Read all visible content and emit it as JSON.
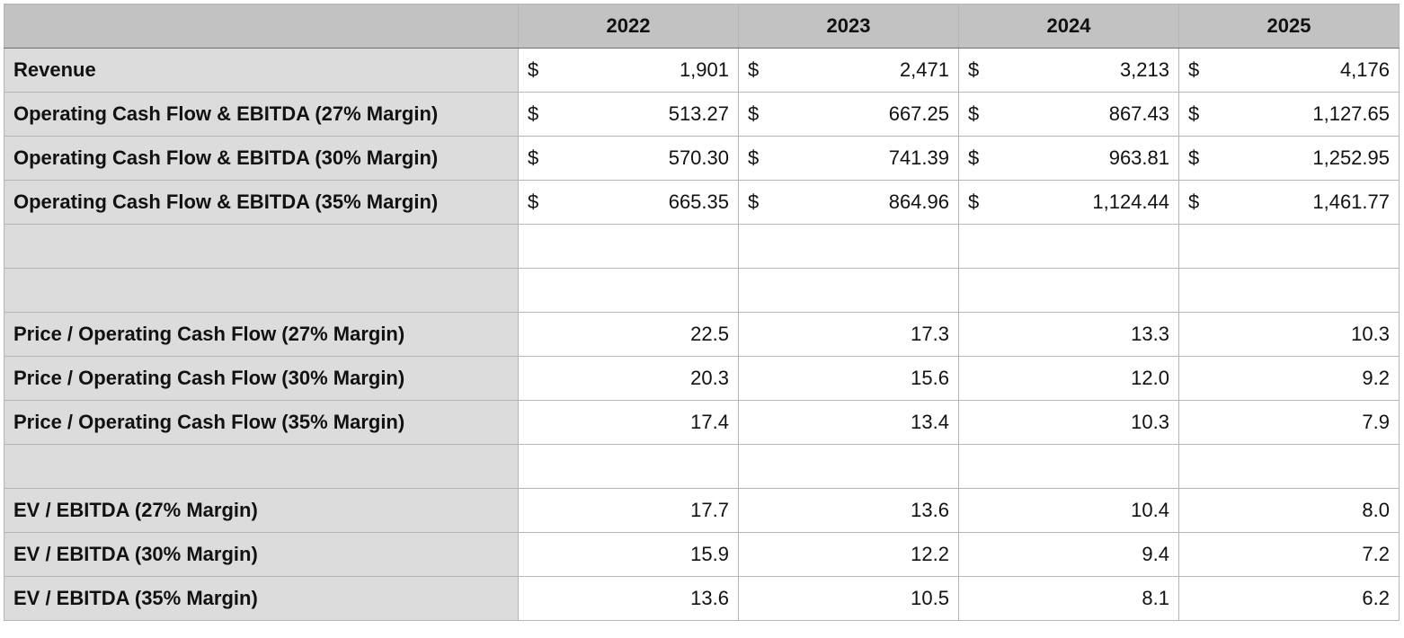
{
  "table": {
    "years": [
      "2022",
      "2023",
      "2024",
      "2025"
    ],
    "currency": "$",
    "sections": [
      {
        "rows": [
          {
            "label": "Revenue",
            "cells": [
              "1,901",
              "2,471",
              "3,213",
              "4,176"
            ]
          },
          {
            "label": "Operating Cash Flow & EBITDA (27% Margin)",
            "cells": [
              "513.27",
              "667.25",
              "867.43",
              "1,127.65"
            ]
          },
          {
            "label": "Operating Cash Flow & EBITDA (30% Margin)",
            "cells": [
              "570.30",
              "741.39",
              "963.81",
              "1,252.95"
            ]
          },
          {
            "label": "Operating Cash Flow & EBITDA (35% Margin)",
            "cells": [
              "665.35",
              "864.96",
              "1,124.44",
              "1,461.77"
            ]
          }
        ]
      },
      {
        "rows": [
          {
            "label": "Price / Operating Cash Flow (27% Margin)",
            "cells": [
              "22.5",
              "17.3",
              "13.3",
              "10.3"
            ]
          },
          {
            "label": "Price / Operating Cash Flow (30% Margin)",
            "cells": [
              "20.3",
              "15.6",
              "12.0",
              "9.2"
            ]
          },
          {
            "label": "Price / Operating Cash Flow (35% Margin)",
            "cells": [
              "17.4",
              "13.4",
              "10.3",
              "7.9"
            ]
          }
        ]
      },
      {
        "rows": [
          {
            "label": "EV / EBITDA (27% Margin)",
            "cells": [
              "17.7",
              "13.6",
              "10.4",
              "8.0"
            ]
          },
          {
            "label": "EV / EBITDA (30% Margin)",
            "cells": [
              "15.9",
              "12.2",
              "9.4",
              "7.2"
            ]
          },
          {
            "label": "EV / EBITDA (35% Margin)",
            "cells": [
              "13.6",
              "10.5",
              "8.1",
              "6.2"
            ]
          }
        ]
      }
    ]
  }
}
